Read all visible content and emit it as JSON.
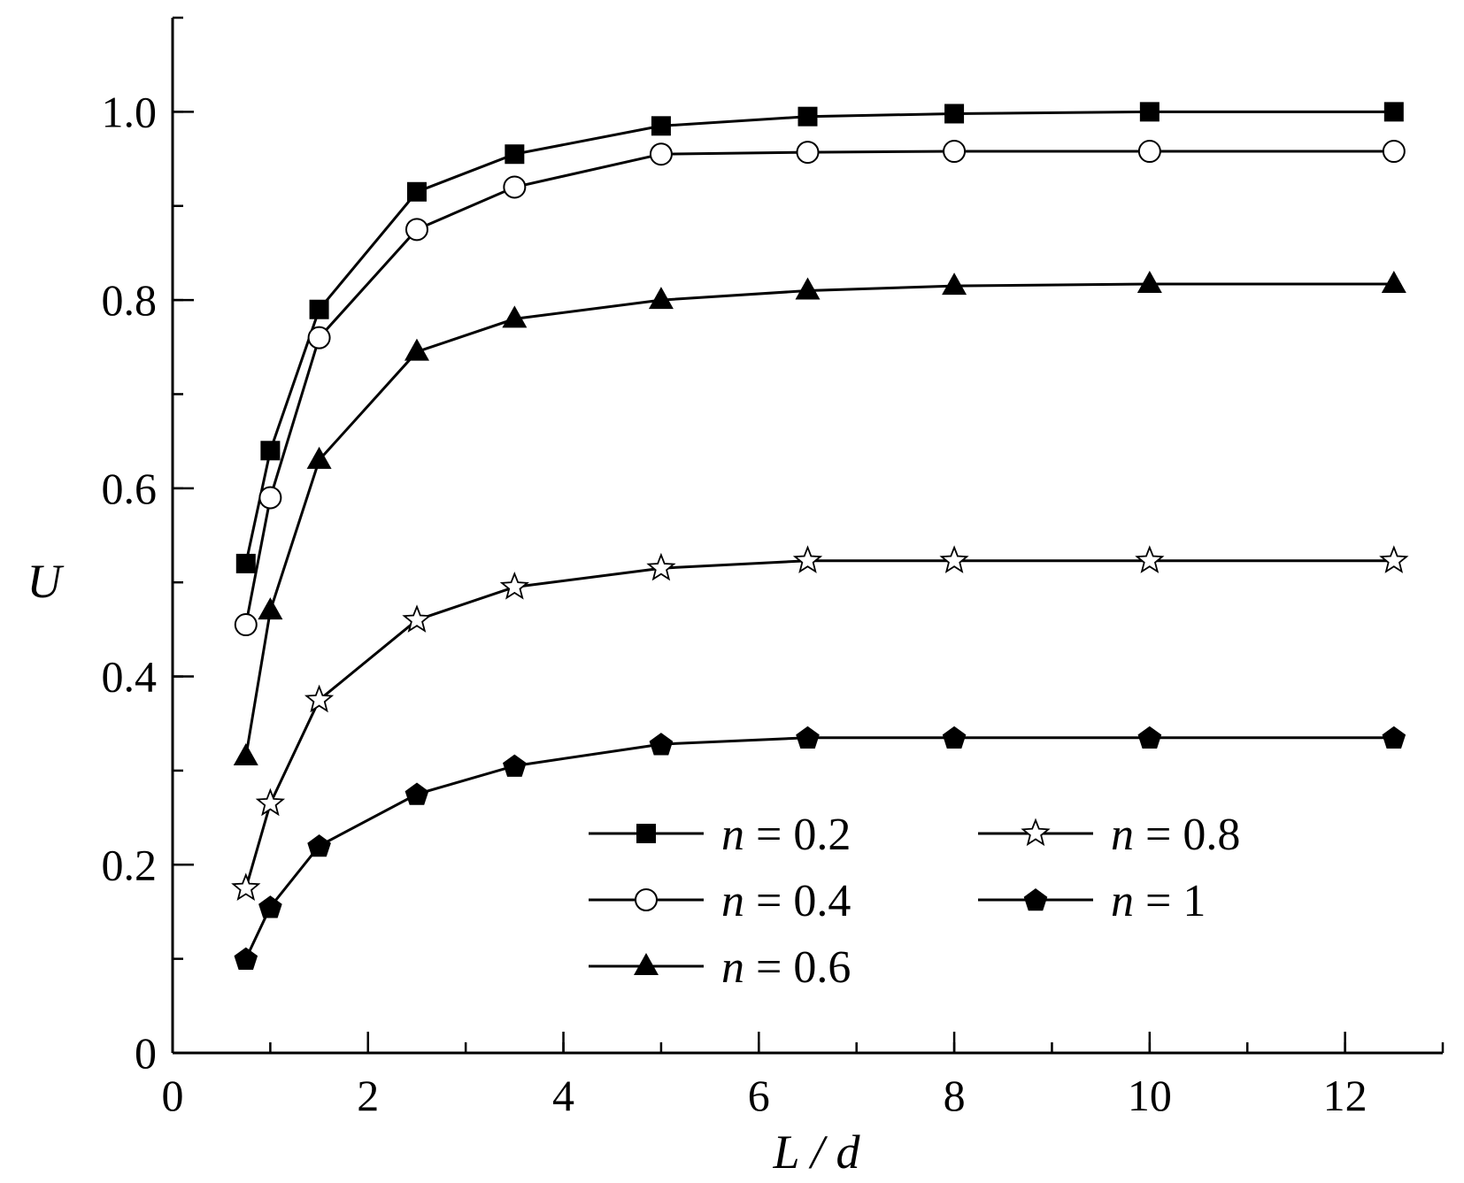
{
  "chart_data": {
    "type": "line",
    "xlabel": "L / d",
    "ylabel": "U",
    "xlim": [
      0,
      13
    ],
    "ylim": [
      0,
      1.1
    ],
    "x_ticks": [
      {
        "value": 0,
        "label": "0"
      },
      {
        "value": 2,
        "label": "2"
      },
      {
        "value": 4,
        "label": "4"
      },
      {
        "value": 6,
        "label": "6"
      },
      {
        "value": 8,
        "label": "8"
      },
      {
        "value": 10,
        "label": "10"
      },
      {
        "value": 12,
        "label": "12"
      }
    ],
    "y_ticks": [
      {
        "value": 0,
        "label": "0"
      },
      {
        "value": 0.2,
        "label": "0.2"
      },
      {
        "value": 0.4,
        "label": "0.4"
      },
      {
        "value": 0.6,
        "label": "0.6"
      },
      {
        "value": 0.8,
        "label": "0.8"
      },
      {
        "value": 1.0,
        "label": "1.0"
      }
    ],
    "x_minor_step": 1,
    "y_minor_step": 0.1,
    "grid": false,
    "legend_position": "bottom-right",
    "x": [
      0.75,
      1,
      1.5,
      2.5,
      3.5,
      5,
      6.5,
      8,
      10,
      12.5
    ],
    "series": [
      {
        "name": "n = 0.2",
        "marker": "filled-square",
        "values": [
          0.52,
          0.64,
          0.79,
          0.915,
          0.955,
          0.985,
          0.995,
          0.998,
          1.0,
          1.0
        ]
      },
      {
        "name": "n = 0.4",
        "marker": "open-circle",
        "values": [
          0.455,
          0.59,
          0.76,
          0.875,
          0.92,
          0.955,
          0.957,
          0.958,
          0.958,
          0.958
        ]
      },
      {
        "name": "n = 0.6",
        "marker": "filled-triangle",
        "values": [
          0.315,
          0.47,
          0.63,
          0.745,
          0.78,
          0.8,
          0.81,
          0.815,
          0.817,
          0.817
        ]
      },
      {
        "name": "n = 0.8",
        "marker": "open-star",
        "values": [
          0.175,
          0.265,
          0.375,
          0.46,
          0.495,
          0.515,
          0.523,
          0.523,
          0.523,
          0.523
        ]
      },
      {
        "name": "n = 1",
        "marker": "filled-pentagon",
        "values": [
          0.1,
          0.155,
          0.22,
          0.275,
          0.305,
          0.328,
          0.335,
          0.335,
          0.335,
          0.335
        ]
      }
    ],
    "legend": [
      {
        "prefix": "n",
        "suffix": " = 0.2",
        "marker": "filled-square"
      },
      {
        "prefix": "n",
        "suffix": " = 0.8",
        "marker": "open-star"
      },
      {
        "prefix": "n",
        "suffix": " = 0.4",
        "marker": "open-circle"
      },
      {
        "prefix": "n",
        "suffix": " = 1",
        "marker": "filled-pentagon"
      },
      {
        "prefix": "n",
        "suffix": " = 0.6",
        "marker": "filled-triangle"
      }
    ]
  }
}
